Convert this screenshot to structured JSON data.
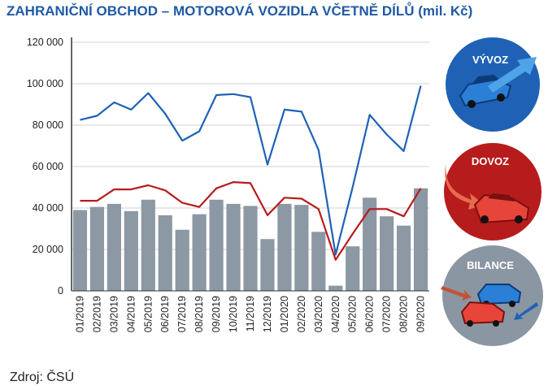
{
  "title": "ZAHRANIČNÍ OBCHOD – MOTOROVÁ VOZIDLA VČETNĚ DÍLŮ (mil. Kč)",
  "source": "Zdroj: ČSÚ",
  "badges": {
    "export_label": "VÝVOZ",
    "import_label": "DOVOZ",
    "balance_label": "BILANCE",
    "export_color": "#1f62b5",
    "import_color": "#b71c1c",
    "balance_color": "#8b96a3"
  },
  "chart_data": {
    "type": "bar+line",
    "categories": [
      "01/2019",
      "02/2019",
      "03/2019",
      "04/2019",
      "05/2019",
      "06/2019",
      "07/2019",
      "08/2019",
      "09/2019",
      "10/2019",
      "11/2019",
      "12/2019",
      "01/2020",
      "02/2020",
      "03/2020",
      "04/2020",
      "05/2020",
      "06/2020",
      "07/2020",
      "08/2020",
      "09/2020"
    ],
    "ylim": [
      0,
      120000
    ],
    "yticks": [
      0,
      20000,
      40000,
      60000,
      80000,
      100000,
      120000
    ],
    "ytick_labels": [
      "0",
      "20 000",
      "40 000",
      "60 000",
      "80 000",
      "100 000",
      "120 000"
    ],
    "grid": true,
    "series": [
      {
        "type": "bar",
        "color": "#8c98a4",
        "values": [
          39000,
          40500,
          42000,
          38500,
          44000,
          36500,
          29500,
          37000,
          44000,
          42000,
          41000,
          25000,
          42000,
          41500,
          28500,
          2500,
          21500,
          45000,
          36000,
          31500,
          49500
        ]
      },
      {
        "type": "line",
        "color": "#1f62b5",
        "values": [
          82500,
          84500,
          91000,
          87500,
          95500,
          85500,
          72500,
          77000,
          94500,
          95000,
          93500,
          61000,
          87500,
          86500,
          68000,
          17500,
          50000,
          85000,
          75500,
          67500,
          99000
        ]
      },
      {
        "type": "line",
        "color": "#b71c1c",
        "values": [
          43500,
          43500,
          49000,
          49000,
          51000,
          48500,
          42500,
          40500,
          49500,
          52500,
          52000,
          36500,
          45000,
          44500,
          39500,
          15000,
          27500,
          39500,
          39500,
          36000,
          49500
        ]
      }
    ]
  }
}
